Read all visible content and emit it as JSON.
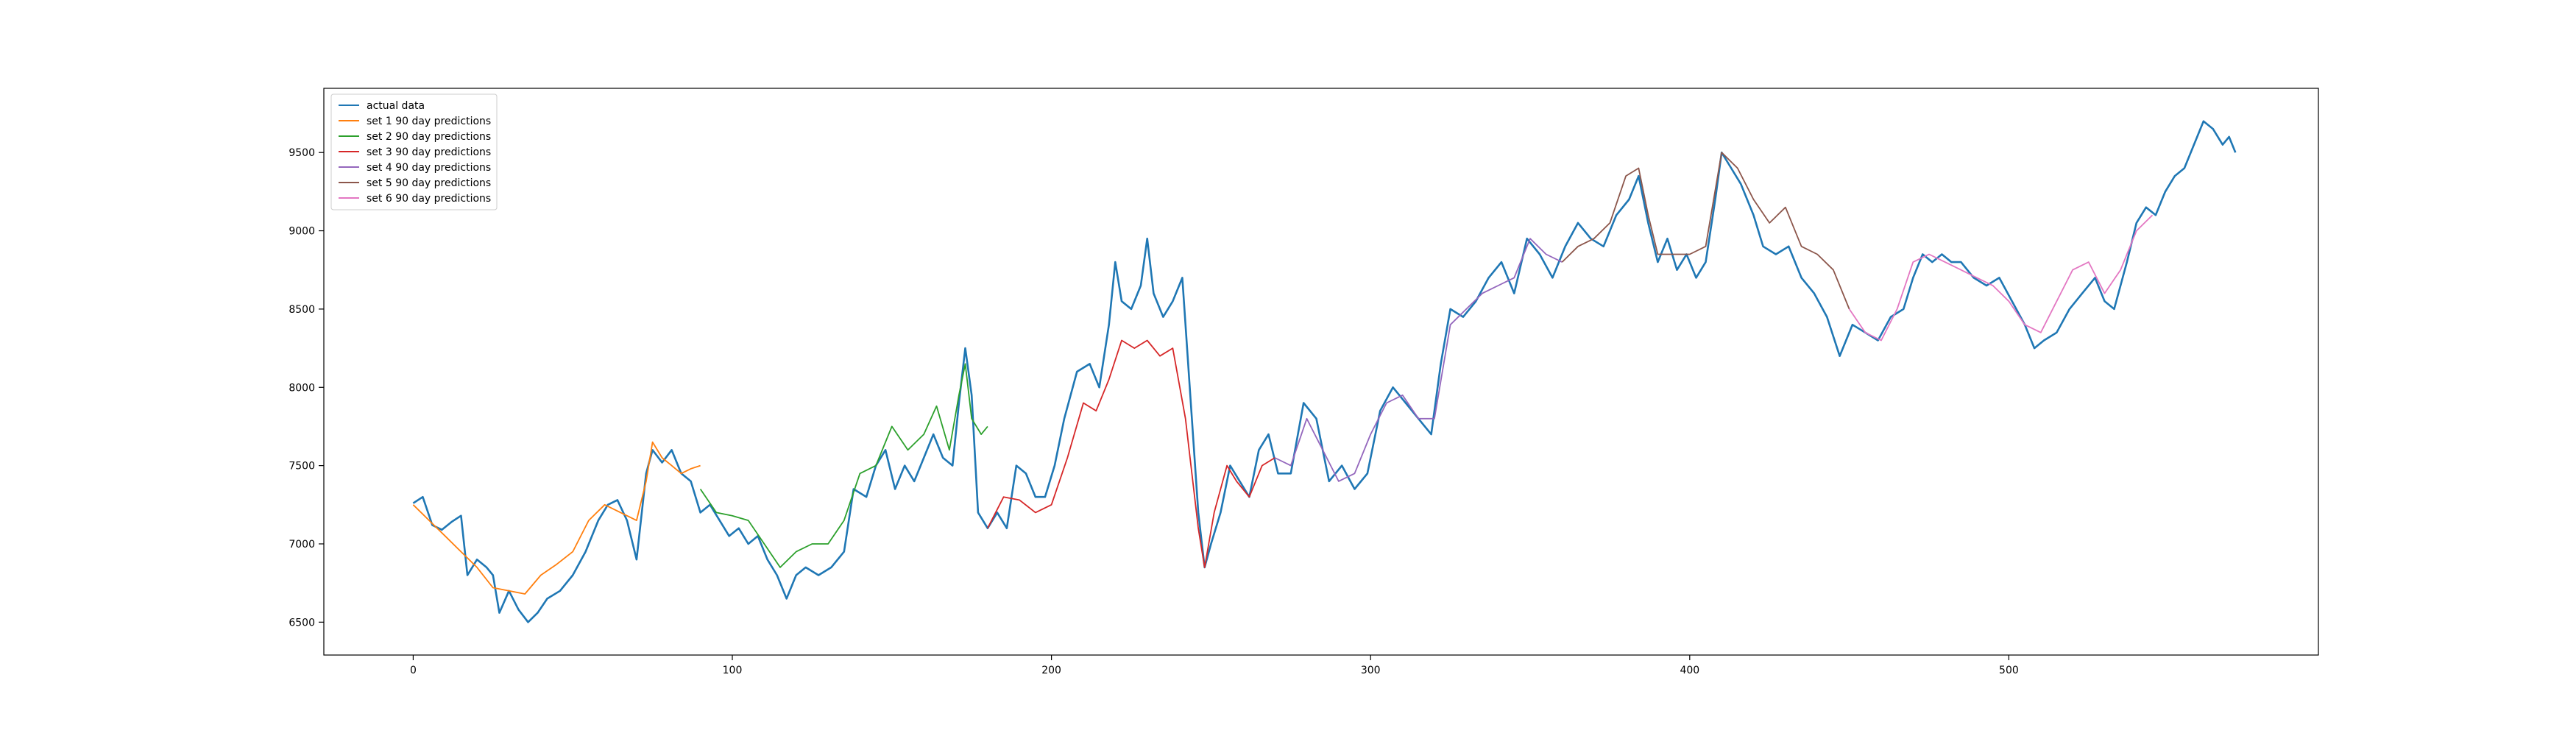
{
  "chart_data": {
    "type": "line",
    "title": "",
    "xlabel": "",
    "ylabel": "",
    "xlim": [
      -28,
      597
    ],
    "ylim": [
      6290,
      9910
    ],
    "xticks": [
      0,
      100,
      200,
      300,
      400,
      500
    ],
    "yticks": [
      6500,
      7000,
      7500,
      8000,
      8500,
      9000,
      9500
    ],
    "grid": false,
    "legend_position": "upper-left",
    "series": [
      {
        "name": "actual data",
        "color": "#1f77b4",
        "points": [
          [
            0,
            7260
          ],
          [
            3,
            7300
          ],
          [
            6,
            7120
          ],
          [
            9,
            7090
          ],
          [
            12,
            7140
          ],
          [
            15,
            7180
          ],
          [
            17,
            6800
          ],
          [
            20,
            6900
          ],
          [
            23,
            6850
          ],
          [
            25,
            6800
          ],
          [
            27,
            6560
          ],
          [
            30,
            6700
          ],
          [
            33,
            6580
          ],
          [
            36,
            6500
          ],
          [
            39,
            6560
          ],
          [
            42,
            6650
          ],
          [
            46,
            6700
          ],
          [
            50,
            6800
          ],
          [
            54,
            6950
          ],
          [
            58,
            7150
          ],
          [
            61,
            7250
          ],
          [
            64,
            7280
          ],
          [
            67,
            7150
          ],
          [
            70,
            6900
          ],
          [
            73,
            7450
          ],
          [
            75,
            7600
          ],
          [
            78,
            7520
          ],
          [
            81,
            7600
          ],
          [
            84,
            7450
          ],
          [
            87,
            7400
          ],
          [
            90,
            7200
          ],
          [
            93,
            7250
          ],
          [
            96,
            7150
          ],
          [
            99,
            7050
          ],
          [
            102,
            7100
          ],
          [
            105,
            7000
          ],
          [
            108,
            7050
          ],
          [
            111,
            6900
          ],
          [
            114,
            6800
          ],
          [
            117,
            6650
          ],
          [
            120,
            6800
          ],
          [
            123,
            6850
          ],
          [
            127,
            6800
          ],
          [
            131,
            6850
          ],
          [
            135,
            6950
          ],
          [
            138,
            7350
          ],
          [
            142,
            7300
          ],
          [
            145,
            7500
          ],
          [
            148,
            7600
          ],
          [
            151,
            7350
          ],
          [
            154,
            7500
          ],
          [
            157,
            7400
          ],
          [
            160,
            7550
          ],
          [
            163,
            7700
          ],
          [
            166,
            7550
          ],
          [
            169,
            7500
          ],
          [
            171,
            7900
          ],
          [
            173,
            8250
          ],
          [
            175,
            7950
          ],
          [
            177,
            7200
          ],
          [
            180,
            7100
          ],
          [
            183,
            7200
          ],
          [
            186,
            7100
          ],
          [
            189,
            7500
          ],
          [
            192,
            7450
          ],
          [
            195,
            7300
          ],
          [
            198,
            7300
          ],
          [
            201,
            7500
          ],
          [
            204,
            7800
          ],
          [
            208,
            8100
          ],
          [
            212,
            8150
          ],
          [
            215,
            8000
          ],
          [
            218,
            8400
          ],
          [
            220,
            8800
          ],
          [
            222,
            8550
          ],
          [
            225,
            8500
          ],
          [
            228,
            8650
          ],
          [
            230,
            8950
          ],
          [
            232,
            8600
          ],
          [
            235,
            8450
          ],
          [
            238,
            8550
          ],
          [
            241,
            8700
          ],
          [
            244,
            7800
          ],
          [
            246,
            7200
          ],
          [
            248,
            6850
          ],
          [
            250,
            7000
          ],
          [
            253,
            7200
          ],
          [
            256,
            7500
          ],
          [
            259,
            7400
          ],
          [
            262,
            7300
          ],
          [
            265,
            7600
          ],
          [
            268,
            7700
          ],
          [
            271,
            7450
          ],
          [
            275,
            7450
          ],
          [
            279,
            7900
          ],
          [
            283,
            7800
          ],
          [
            287,
            7400
          ],
          [
            291,
            7500
          ],
          [
            295,
            7350
          ],
          [
            299,
            7450
          ],
          [
            303,
            7850
          ],
          [
            307,
            8000
          ],
          [
            311,
            7900
          ],
          [
            315,
            7800
          ],
          [
            319,
            7700
          ],
          [
            322,
            8150
          ],
          [
            325,
            8500
          ],
          [
            329,
            8450
          ],
          [
            333,
            8550
          ],
          [
            337,
            8700
          ],
          [
            341,
            8800
          ],
          [
            345,
            8600
          ],
          [
            349,
            8950
          ],
          [
            353,
            8850
          ],
          [
            357,
            8700
          ],
          [
            361,
            8900
          ],
          [
            365,
            9050
          ],
          [
            369,
            8950
          ],
          [
            373,
            8900
          ],
          [
            377,
            9100
          ],
          [
            381,
            9200
          ],
          [
            384,
            9350
          ],
          [
            387,
            9050
          ],
          [
            390,
            8800
          ],
          [
            393,
            8950
          ],
          [
            396,
            8750
          ],
          [
            399,
            8850
          ],
          [
            402,
            8700
          ],
          [
            405,
            8800
          ],
          [
            408,
            9200
          ],
          [
            410,
            9500
          ],
          [
            413,
            9400
          ],
          [
            416,
            9300
          ],
          [
            420,
            9100
          ],
          [
            423,
            8900
          ],
          [
            427,
            8850
          ],
          [
            431,
            8900
          ],
          [
            435,
            8700
          ],
          [
            439,
            8600
          ],
          [
            443,
            8450
          ],
          [
            447,
            8200
          ],
          [
            451,
            8400
          ],
          [
            455,
            8350
          ],
          [
            459,
            8300
          ],
          [
            463,
            8450
          ],
          [
            467,
            8500
          ],
          [
            470,
            8700
          ],
          [
            473,
            8850
          ],
          [
            476,
            8800
          ],
          [
            479,
            8850
          ],
          [
            482,
            8800
          ],
          [
            485,
            8800
          ],
          [
            489,
            8700
          ],
          [
            493,
            8650
          ],
          [
            497,
            8700
          ],
          [
            501,
            8550
          ],
          [
            505,
            8400
          ],
          [
            508,
            8250
          ],
          [
            511,
            8300
          ],
          [
            515,
            8350
          ],
          [
            519,
            8500
          ],
          [
            523,
            8600
          ],
          [
            527,
            8700
          ],
          [
            530,
            8550
          ],
          [
            533,
            8500
          ],
          [
            537,
            8800
          ],
          [
            540,
            9050
          ],
          [
            543,
            9150
          ],
          [
            546,
            9100
          ],
          [
            549,
            9250
          ],
          [
            552,
            9350
          ],
          [
            555,
            9400
          ],
          [
            558,
            9550
          ],
          [
            561,
            9700
          ],
          [
            564,
            9650
          ],
          [
            567,
            9550
          ],
          [
            569,
            9600
          ],
          [
            571,
            9500
          ]
        ]
      },
      {
        "name": "set 1 90 day predictions",
        "color": "#ff7f0e",
        "points": [
          [
            0,
            7250
          ],
          [
            5,
            7150
          ],
          [
            10,
            7050
          ],
          [
            15,
            6950
          ],
          [
            20,
            6850
          ],
          [
            25,
            6720
          ],
          [
            30,
            6700
          ],
          [
            35,
            6680
          ],
          [
            40,
            6800
          ],
          [
            45,
            6870
          ],
          [
            50,
            6950
          ],
          [
            55,
            7150
          ],
          [
            60,
            7250
          ],
          [
            65,
            7200
          ],
          [
            70,
            7150
          ],
          [
            73,
            7400
          ],
          [
            75,
            7650
          ],
          [
            78,
            7550
          ],
          [
            81,
            7500
          ],
          [
            84,
            7450
          ],
          [
            87,
            7480
          ],
          [
            90,
            7500
          ]
        ]
      },
      {
        "name": "set 2 90 day predictions",
        "color": "#2ca02c",
        "points": [
          [
            90,
            7350
          ],
          [
            95,
            7200
          ],
          [
            100,
            7180
          ],
          [
            105,
            7150
          ],
          [
            110,
            7000
          ],
          [
            115,
            6850
          ],
          [
            120,
            6950
          ],
          [
            125,
            7000
          ],
          [
            130,
            7000
          ],
          [
            135,
            7150
          ],
          [
            140,
            7450
          ],
          [
            145,
            7500
          ],
          [
            150,
            7750
          ],
          [
            155,
            7600
          ],
          [
            160,
            7700
          ],
          [
            164,
            7880
          ],
          [
            168,
            7600
          ],
          [
            171,
            7950
          ],
          [
            173,
            8150
          ],
          [
            175,
            7800
          ],
          [
            178,
            7700
          ],
          [
            180,
            7750
          ]
        ]
      },
      {
        "name": "set 3 90 day predictions",
        "color": "#d62728",
        "points": [
          [
            180,
            7100
          ],
          [
            185,
            7300
          ],
          [
            190,
            7280
          ],
          [
            195,
            7200
          ],
          [
            200,
            7250
          ],
          [
            205,
            7550
          ],
          [
            210,
            7900
          ],
          [
            214,
            7850
          ],
          [
            218,
            8050
          ],
          [
            222,
            8300
          ],
          [
            226,
            8250
          ],
          [
            230,
            8300
          ],
          [
            234,
            8200
          ],
          [
            238,
            8250
          ],
          [
            242,
            7800
          ],
          [
            246,
            7100
          ],
          [
            248,
            6850
          ],
          [
            251,
            7200
          ],
          [
            255,
            7500
          ],
          [
            258,
            7400
          ],
          [
            262,
            7300
          ],
          [
            266,
            7500
          ],
          [
            270,
            7550
          ]
        ]
      },
      {
        "name": "set 4 90 day predictions",
        "color": "#9467bd",
        "points": [
          [
            270,
            7550
          ],
          [
            275,
            7500
          ],
          [
            280,
            7800
          ],
          [
            285,
            7600
          ],
          [
            290,
            7400
          ],
          [
            295,
            7450
          ],
          [
            300,
            7700
          ],
          [
            305,
            7900
          ],
          [
            310,
            7950
          ],
          [
            315,
            7800
          ],
          [
            320,
            7800
          ],
          [
            325,
            8400
          ],
          [
            330,
            8500
          ],
          [
            335,
            8600
          ],
          [
            340,
            8650
          ],
          [
            345,
            8700
          ],
          [
            350,
            8950
          ],
          [
            355,
            8850
          ],
          [
            360,
            8800
          ]
        ]
      },
      {
        "name": "set 5 90 day predictions",
        "color": "#8c564b",
        "points": [
          [
            360,
            8800
          ],
          [
            365,
            8900
          ],
          [
            370,
            8950
          ],
          [
            375,
            9050
          ],
          [
            380,
            9350
          ],
          [
            384,
            9400
          ],
          [
            387,
            9100
          ],
          [
            390,
            8850
          ],
          [
            395,
            8850
          ],
          [
            400,
            8850
          ],
          [
            405,
            8900
          ],
          [
            410,
            9500
          ],
          [
            415,
            9400
          ],
          [
            420,
            9200
          ],
          [
            425,
            9050
          ],
          [
            430,
            9150
          ],
          [
            435,
            8900
          ],
          [
            440,
            8850
          ],
          [
            445,
            8750
          ],
          [
            450,
            8500
          ]
        ]
      },
      {
        "name": "set 6 90 day predictions",
        "color": "#e377c2",
        "points": [
          [
            450,
            8500
          ],
          [
            455,
            8350
          ],
          [
            460,
            8300
          ],
          [
            465,
            8500
          ],
          [
            470,
            8800
          ],
          [
            475,
            8850
          ],
          [
            480,
            8800
          ],
          [
            485,
            8750
          ],
          [
            490,
            8700
          ],
          [
            495,
            8650
          ],
          [
            500,
            8550
          ],
          [
            505,
            8400
          ],
          [
            510,
            8350
          ],
          [
            515,
            8550
          ],
          [
            520,
            8750
          ],
          [
            525,
            8800
          ],
          [
            530,
            8600
          ],
          [
            535,
            8750
          ],
          [
            540,
            9000
          ],
          [
            545,
            9100
          ]
        ]
      }
    ]
  }
}
